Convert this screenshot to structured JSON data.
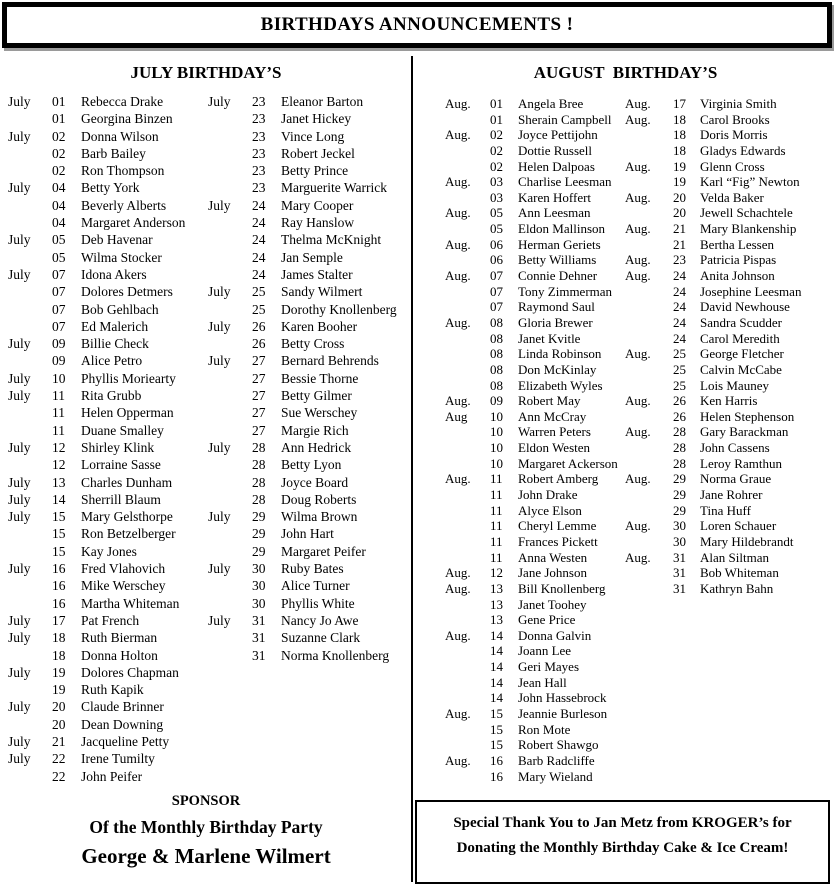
{
  "header": {
    "title": "BIRTHDAYS ANNOUNCEMENTS !"
  },
  "july": {
    "title": "JULY BIRTHDAY’S",
    "col1": [
      {
        "month": "July",
        "day": "01",
        "name": "Rebecca Drake"
      },
      {
        "month": "",
        "day": "01",
        "name": "Georgina Binzen"
      },
      {
        "month": "July",
        "day": "02",
        "name": "Donna Wilson"
      },
      {
        "month": "",
        "day": "02",
        "name": "Barb Bailey"
      },
      {
        "month": "",
        "day": "02",
        "name": "Ron Thompson"
      },
      {
        "month": "July",
        "day": "04",
        "name": "Betty York"
      },
      {
        "month": "",
        "day": "04",
        "name": "Beverly Alberts"
      },
      {
        "month": "",
        "day": "04",
        "name": "Margaret Anderson"
      },
      {
        "month": "July",
        "day": "05",
        "name": "Deb Havenar"
      },
      {
        "month": "",
        "day": "05",
        "name": "Wilma Stocker"
      },
      {
        "month": "July",
        "day": "07",
        "name": "Idona Akers"
      },
      {
        "month": "",
        "day": "07",
        "name": "Dolores Detmers"
      },
      {
        "month": "",
        "day": "07",
        "name": "Bob Gehlbach"
      },
      {
        "month": "",
        "day": "07",
        "name": "Ed Malerich"
      },
      {
        "month": "July",
        "day": "09",
        "name": "Billie Check"
      },
      {
        "month": "",
        "day": "09",
        "name": "Alice Petro"
      },
      {
        "month": "July",
        "day": "10",
        "name": "Phyllis Moriearty"
      },
      {
        "month": "July",
        "day": "11",
        "name": "Rita Grubb"
      },
      {
        "month": "",
        "day": "11",
        "name": "Helen Opperman"
      },
      {
        "month": "",
        "day": "11",
        "name": "Duane Smalley"
      },
      {
        "month": "July",
        "day": "12",
        "name": "Shirley Klink"
      },
      {
        "month": "",
        "day": "12",
        "name": "Lorraine Sasse"
      },
      {
        "month": "July",
        "day": "13",
        "name": "Charles Dunham"
      },
      {
        "month": "July",
        "day": "14",
        "name": "Sherrill Blaum"
      },
      {
        "month": "July",
        "day": "15",
        "name": "Mary Gelsthorpe"
      },
      {
        "month": "",
        "day": "15",
        "name": "Ron Betzelberger"
      },
      {
        "month": "",
        "day": "15",
        "name": "Kay Jones"
      },
      {
        "month": "July",
        "day": "16",
        "name": "Fred Vlahovich"
      },
      {
        "month": "",
        "day": "16",
        "name": "Mike Werschey"
      },
      {
        "month": "",
        "day": "16",
        "name": "Martha Whiteman"
      },
      {
        "month": "July",
        "day": "17",
        "name": "Pat French"
      },
      {
        "month": "July",
        "day": "18",
        "name": "Ruth Bierman"
      },
      {
        "month": "",
        "day": "18",
        "name": "Donna Holton"
      },
      {
        "month": "July",
        "day": "19",
        "name": "Dolores Chapman"
      },
      {
        "month": "",
        "day": "19",
        "name": "Ruth Kapik"
      },
      {
        "month": "July",
        "day": "20",
        "name": "Claude Brinner"
      },
      {
        "month": "",
        "day": "20",
        "name": "Dean Downing"
      },
      {
        "month": "July",
        "day": "21",
        "name": "Jacqueline Petty"
      },
      {
        "month": "July",
        "day": "22",
        "name": "Irene Tumilty"
      },
      {
        "month": "",
        "day": "22",
        "name": "John Peifer"
      }
    ],
    "col2": [
      {
        "month": "July",
        "day": "23",
        "name": "Eleanor Barton"
      },
      {
        "month": "",
        "day": "23",
        "name": "Janet Hickey"
      },
      {
        "month": "",
        "day": "23",
        "name": "Vince Long"
      },
      {
        "month": "",
        "day": "23",
        "name": "Robert Jeckel"
      },
      {
        "month": "",
        "day": "23",
        "name": "Betty Prince"
      },
      {
        "month": "",
        "day": "23",
        "name": "Marguerite Warrick"
      },
      {
        "month": "July",
        "day": "24",
        "name": "Mary Cooper"
      },
      {
        "month": "",
        "day": "24",
        "name": "Ray Hanslow"
      },
      {
        "month": "",
        "day": "24",
        "name": "Thelma McKnight"
      },
      {
        "month": "",
        "day": "24",
        "name": "Jan Semple"
      },
      {
        "month": "",
        "day": "24",
        "name": "James Stalter"
      },
      {
        "month": "July",
        "day": "25",
        "name": "Sandy Wilmert"
      },
      {
        "month": "",
        "day": "25",
        "name": "Dorothy Knollenberg"
      },
      {
        "month": "July",
        "day": "26",
        "name": "Karen Booher"
      },
      {
        "month": "",
        "day": "26",
        "name": "Betty Cross"
      },
      {
        "month": "July",
        "day": "27",
        "name": "Bernard Behrends"
      },
      {
        "month": "",
        "day": "27",
        "name": "Bessie Thorne"
      },
      {
        "month": "",
        "day": "27",
        "name": "Betty Gilmer"
      },
      {
        "month": "",
        "day": "27",
        "name": "Sue Werschey"
      },
      {
        "month": "",
        "day": "27",
        "name": "Margie Rich"
      },
      {
        "month": "July",
        "day": "28",
        "name": "Ann Hedrick"
      },
      {
        "month": "",
        "day": "28",
        "name": "Betty Lyon"
      },
      {
        "month": "",
        "day": "28",
        "name": "Joyce Board"
      },
      {
        "month": "",
        "day": "28",
        "name": "Doug Roberts"
      },
      {
        "month": "July",
        "day": "29",
        "name": "Wilma Brown"
      },
      {
        "month": "",
        "day": "29",
        "name": "John Hart"
      },
      {
        "month": "",
        "day": "29",
        "name": "Margaret Peifer"
      },
      {
        "month": "July",
        "day": "30",
        "name": "Ruby Bates"
      },
      {
        "month": "",
        "day": "30",
        "name": "Alice Turner"
      },
      {
        "month": "",
        "day": "30",
        "name": "Phyllis White"
      },
      {
        "month": "July",
        "day": "31",
        "name": "Nancy Jo Awe"
      },
      {
        "month": "",
        "day": "31",
        "name": "Suzanne Clark"
      },
      {
        "month": "",
        "day": "31",
        "name": "Norma Knollenberg"
      }
    ]
  },
  "august": {
    "title": "AUGUST  BIRTHDAY’S",
    "col1": [
      {
        "month": "Aug.",
        "day": "01",
        "name": "Angela Bree"
      },
      {
        "month": "",
        "day": "01",
        "name": "Sherain Campbell"
      },
      {
        "month": "Aug.",
        "day": "02",
        "name": "Joyce Pettijohn"
      },
      {
        "month": "",
        "day": "02",
        "name": "Dottie Russell"
      },
      {
        "month": "",
        "day": "02",
        "name": "Helen Dalpoas"
      },
      {
        "month": "Aug.",
        "day": "03",
        "name": "Charlise Leesman"
      },
      {
        "month": "",
        "day": "03",
        "name": "Karen Hoffert"
      },
      {
        "month": "Aug.",
        "day": "05",
        "name": "Ann Leesman"
      },
      {
        "month": "",
        "day": "05",
        "name": "Eldon Mallinson"
      },
      {
        "month": "Aug.",
        "day": "06",
        "name": "Herman Geriets"
      },
      {
        "month": "",
        "day": "06",
        "name": "Betty Williams"
      },
      {
        "month": "Aug.",
        "day": "07",
        "name": "Connie Dehner"
      },
      {
        "month": "",
        "day": "07",
        "name": "Tony Zimmerman"
      },
      {
        "month": "",
        "day": "07",
        "name": "Raymond Saul"
      },
      {
        "month": "Aug.",
        "day": "08",
        "name": "Gloria Brewer"
      },
      {
        "month": "",
        "day": "08",
        "name": "Janet Kvitle"
      },
      {
        "month": "",
        "day": "08",
        "name": "Linda Robinson"
      },
      {
        "month": "",
        "day": "08",
        "name": "Don McKinlay"
      },
      {
        "month": "",
        "day": "08",
        "name": "Elizabeth Wyles"
      },
      {
        "month": "Aug.",
        "day": "09",
        "name": "Robert May"
      },
      {
        "month": "Aug",
        "day": "10",
        "name": "Ann McCray"
      },
      {
        "month": "",
        "day": "10",
        "name": "Warren Peters"
      },
      {
        "month": "",
        "day": "10",
        "name": "Eldon Westen"
      },
      {
        "month": "",
        "day": "10",
        "name": "Margaret Ackerson"
      },
      {
        "month": "Aug.",
        "day": "11",
        "name": "Robert Amberg"
      },
      {
        "month": "",
        "day": "11",
        "name": "John Drake"
      },
      {
        "month": "",
        "day": "11",
        "name": "Alyce Elson"
      },
      {
        "month": "",
        "day": "11",
        "name": "Cheryl Lemme"
      },
      {
        "month": "",
        "day": "11",
        "name": "Frances Pickett"
      },
      {
        "month": "",
        "day": "11",
        "name": "Anna Westen"
      },
      {
        "month": "Aug.",
        "day": "12",
        "name": "Jane Johnson"
      },
      {
        "month": "Aug.",
        "day": "13",
        "name": "Bill Knollenberg"
      },
      {
        "month": "",
        "day": "13",
        "name": "Janet Toohey"
      },
      {
        "month": "",
        "day": "13",
        "name": "Gene Price"
      },
      {
        "month": "Aug.",
        "day": "14",
        "name": "Donna Galvin"
      },
      {
        "month": "",
        "day": "14",
        "name": "Joann Lee"
      },
      {
        "month": "",
        "day": "14",
        "name": "Geri Mayes"
      },
      {
        "month": "",
        "day": "14",
        "name": "Jean Hall"
      },
      {
        "month": "",
        "day": "14",
        "name": "John Hassebrock"
      },
      {
        "month": "Aug.",
        "day": "15",
        "name": "Jeannie Burleson"
      },
      {
        "month": "",
        "day": "15",
        "name": "Ron Mote"
      },
      {
        "month": "",
        "day": "15",
        "name": "Robert Shawgo"
      },
      {
        "month": "Aug.",
        "day": "16",
        "name": "Barb Radcliffe"
      },
      {
        "month": "",
        "day": "16",
        "name": "Mary Wieland"
      }
    ],
    "col2": [
      {
        "month": "Aug.",
        "day": "17",
        "name": "Virginia Smith"
      },
      {
        "month": "Aug.",
        "day": "18",
        "name": "Carol Brooks"
      },
      {
        "month": "",
        "day": "18",
        "name": "Doris Morris"
      },
      {
        "month": "",
        "day": "18",
        "name": "Gladys Edwards"
      },
      {
        "month": "Aug.",
        "day": "19",
        "name": "Glenn Cross"
      },
      {
        "month": "",
        "day": "19",
        "name": "Karl “Fig” Newton"
      },
      {
        "month": "Aug.",
        "day": "20",
        "name": "Velda Baker"
      },
      {
        "month": "",
        "day": "20",
        "name": "Jewell Schachtele"
      },
      {
        "month": "Aug.",
        "day": "21",
        "name": "Mary Blankenship"
      },
      {
        "month": "",
        "day": "21",
        "name": "Bertha Lessen"
      },
      {
        "month": "Aug.",
        "day": "23",
        "name": "Patricia Pispas"
      },
      {
        "month": "Aug.",
        "day": "24",
        "name": "Anita Johnson"
      },
      {
        "month": "",
        "day": "24",
        "name": "Josephine Leesman"
      },
      {
        "month": "",
        "day": "24",
        "name": "David Newhouse"
      },
      {
        "month": "",
        "day": "24",
        "name": "Sandra Scudder"
      },
      {
        "month": "",
        "day": "24",
        "name": "Carol Meredith"
      },
      {
        "month": "Aug.",
        "day": "25",
        "name": "George Fletcher"
      },
      {
        "month": "",
        "day": "25",
        "name": "Calvin McCabe"
      },
      {
        "month": "",
        "day": "25",
        "name": "Lois Mauney"
      },
      {
        "month": "Aug.",
        "day": "26",
        "name": "Ken Harris"
      },
      {
        "month": "",
        "day": "26",
        "name": "Helen Stephenson"
      },
      {
        "month": "Aug.",
        "day": "28",
        "name": "Gary Barackman"
      },
      {
        "month": "",
        "day": "28",
        "name": "John Cassens"
      },
      {
        "month": "",
        "day": "28",
        "name": "Leroy Ramthun"
      },
      {
        "month": "Aug.",
        "day": "29",
        "name": "Norma Graue"
      },
      {
        "month": "",
        "day": "29",
        "name": "Jane Rohrer"
      },
      {
        "month": "",
        "day": "29",
        "name": "Tina Huff"
      },
      {
        "month": "Aug.",
        "day": "30",
        "name": "Loren Schauer"
      },
      {
        "month": "",
        "day": "30",
        "name": "Mary Hildebrandt"
      },
      {
        "month": "Aug.",
        "day": "31",
        "name": "Alan Siltman"
      },
      {
        "month": "",
        "day": "31",
        "name": "Bob Whiteman"
      },
      {
        "month": "",
        "day": "31",
        "name": "Kathryn Bahn"
      }
    ]
  },
  "sponsor": {
    "line1": "SPONSOR",
    "line2": "Of the Monthly Birthday Party",
    "line3": "George & Marlene Wilmert"
  },
  "thanks": {
    "line1": "Special Thank You to Jan Metz from KROGER’s for",
    "line2": "Donating the Monthly Birthday Cake & Ice Cream!"
  }
}
